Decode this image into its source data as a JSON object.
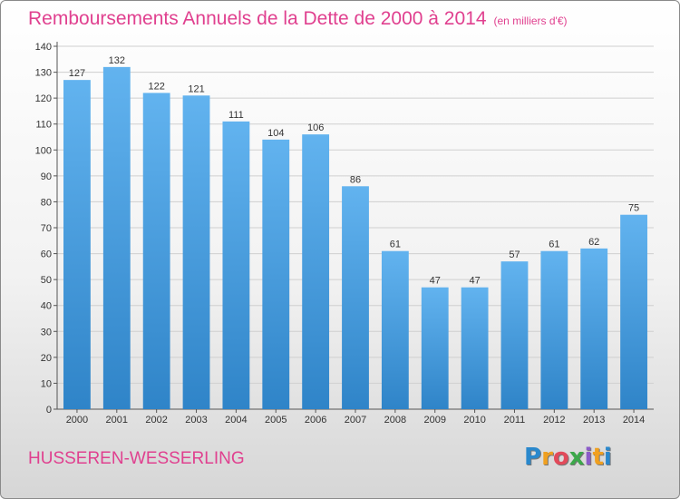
{
  "chart_data": {
    "type": "bar",
    "title": "Remboursements Annuels de la Dette de 2000 à 2014",
    "subtitle": "(en milliers d'€)",
    "categories": [
      "2000",
      "2001",
      "2002",
      "2003",
      "2004",
      "2005",
      "2006",
      "2007",
      "2008",
      "2009",
      "2010",
      "2011",
      "2012",
      "2013",
      "2014"
    ],
    "values": [
      127,
      132,
      122,
      121,
      111,
      104,
      106,
      86,
      61,
      47,
      47,
      57,
      61,
      62,
      75
    ],
    "ylim": [
      0,
      140
    ],
    "yticks": [
      0,
      10,
      20,
      30,
      40,
      50,
      60,
      70,
      80,
      90,
      100,
      110,
      120,
      130,
      140
    ],
    "grid": true,
    "bar_color": "#4a9ee0",
    "data_labels": true
  },
  "town": "HUSSEREN-WESSERLING",
  "logo": {
    "text": "Proxiti",
    "letters": [
      {
        "ch": "P",
        "color": "#2a88cc"
      },
      {
        "ch": "r",
        "color": "#f0a020"
      },
      {
        "ch": "o",
        "color": "#e24a5a"
      },
      {
        "ch": "x",
        "color": "#3ca84a"
      },
      {
        "ch": "i",
        "color": "#8b5cc8"
      },
      {
        "ch": "t",
        "color": "#f0a020"
      },
      {
        "ch": "i",
        "color": "#2a88cc"
      }
    ]
  },
  "colors": {
    "title": "#e0408f",
    "town": "#e0408f"
  }
}
